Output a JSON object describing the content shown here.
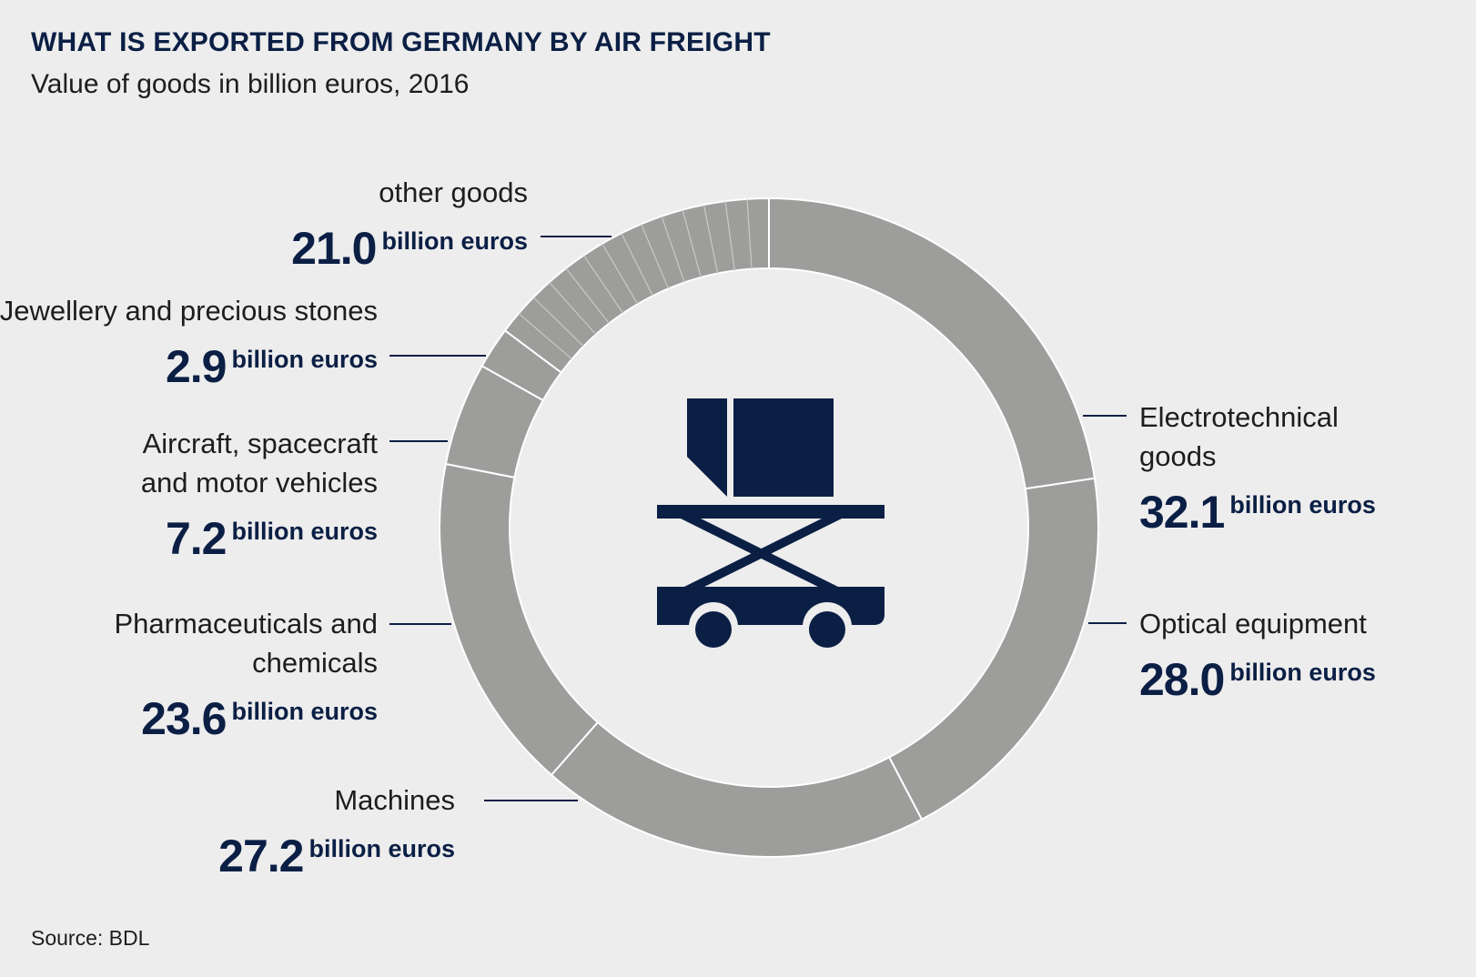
{
  "title": "WHAT IS EXPORTED FROM GERMANY BY AIR FREIGHT",
  "subtitle": "Value of goods in billion euros, 2016",
  "source": "Source: BDL",
  "unit_label": "billion euros",
  "colors": {
    "ring": "#9d9d9c",
    "ink": "#0b1f45",
    "background": "#ededed",
    "separator": "#ffffff"
  },
  "center_icon": "cargo-scissor-lift-icon",
  "chart_data": {
    "type": "pie",
    "subtype": "donut",
    "unit": "billion euros",
    "categories": [
      "Electrotechnical goods",
      "Optical equipment",
      "Machines",
      "Pharmaceuticals and chemicals",
      "Aircraft, spacecraft and motor vehicles",
      "Jewellery and precious stones",
      "other goods"
    ],
    "values": [
      32.1,
      28.0,
      27.2,
      23.6,
      7.2,
      2.9,
      21.0
    ],
    "labels": [
      {
        "lines": [
          "Electrotechnical",
          "goods"
        ],
        "value": "32.1"
      },
      {
        "lines": [
          "Optical equipment"
        ],
        "value": "28.0"
      },
      {
        "lines": [
          "Machines"
        ],
        "value": "27.2"
      },
      {
        "lines": [
          "Pharmaceuticals and",
          "chemicals"
        ],
        "value": "23.6"
      },
      {
        "lines": [
          "Aircraft, spacecraft",
          "and motor vehicles"
        ],
        "value": "7.2"
      },
      {
        "lines": [
          "Jewellery and precious stones"
        ],
        "value": "2.9"
      },
      {
        "lines": [
          "other goods"
        ],
        "value": "21.0"
      }
    ],
    "other_goods_hatched": true
  }
}
